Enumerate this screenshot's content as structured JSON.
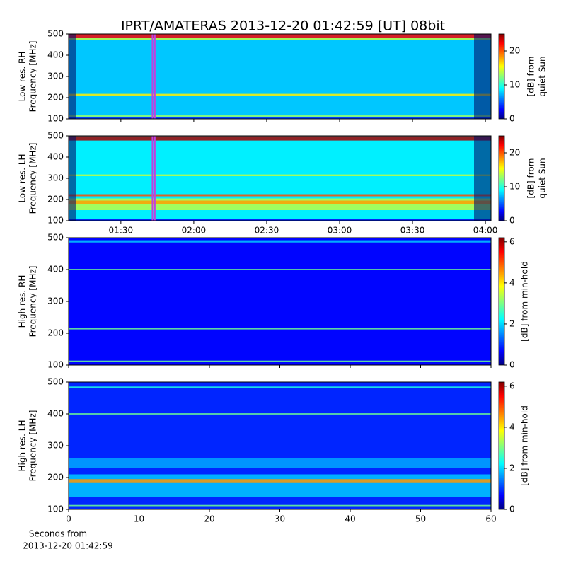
{
  "title": "IPRT/AMATERAS 2013-12-20 01:42:59 [UT]   08bit",
  "xlabel": [
    "Seconds from",
    "2013-12-20 01:42:59"
  ],
  "chart_data": [
    {
      "type": "spectrogram",
      "ylabel": [
        "Low res. RH",
        "Frequency [MHz]"
      ],
      "ylim": [
        100,
        500
      ],
      "yticks": [
        100,
        200,
        300,
        400,
        500
      ],
      "colorbar_label": [
        "[dB] from",
        "quiet Sun"
      ],
      "clim": [
        0,
        25
      ],
      "cticks": [
        0,
        10,
        20
      ],
      "colormap": "jet",
      "background_level": 8,
      "highlight": [
        102.98,
        103.98
      ],
      "highlight_color": "#c040e0",
      "features": [
        {
          "freq": [
            480,
            500
          ],
          "level": 22
        },
        {
          "freq": [
            470,
            480
          ],
          "level": 14
        },
        {
          "freq": [
            210,
            218
          ],
          "level": 16
        },
        {
          "freq": [
            110,
            120
          ],
          "level": 13
        },
        {
          "freq": [
            100,
            108
          ],
          "level": 4
        }
      ]
    },
    {
      "type": "spectrogram",
      "ylabel": [
        "Low res. LH",
        "Frequency [MHz]"
      ],
      "ylim": [
        100,
        500
      ],
      "yticks": [
        100,
        200,
        300,
        400,
        500
      ],
      "colorbar_label": [
        "[dB] from",
        "quiet Sun"
      ],
      "clim": [
        0,
        25
      ],
      "cticks": [
        0,
        10,
        20
      ],
      "colormap": "jet",
      "background_level": 9,
      "highlight": [
        102.98,
        103.98
      ],
      "highlight_color": "#c040e0",
      "xlim": [
        68.5,
        242.3
      ],
      "xticks": [
        {
          "value": 90,
          "label": "01:30"
        },
        {
          "value": 120,
          "label": "02:00"
        },
        {
          "value": 150,
          "label": "02:30"
        },
        {
          "value": 180,
          "label": "03:00"
        },
        {
          "value": 210,
          "label": "03:30"
        },
        {
          "value": 240,
          "label": "04:00"
        }
      ],
      "features": [
        {
          "freq": [
            478,
            498
          ],
          "level": 24
        },
        {
          "freq": [
            150,
            205
          ],
          "level": 14
        },
        {
          "freq": [
            180,
            195
          ],
          "level": 18
        },
        {
          "freq": [
            215,
            225
          ],
          "level": 20
        },
        {
          "freq": [
            310,
            318
          ],
          "level": 14
        },
        {
          "freq": [
            100,
            110
          ],
          "level": 3
        }
      ]
    },
    {
      "type": "spectrogram",
      "ylabel": [
        "High res. RH",
        "Frequency [MHz]"
      ],
      "ylim": [
        100,
        500
      ],
      "yticks": [
        100,
        200,
        300,
        400,
        500
      ],
      "colorbar_label": [
        "[dB] from min-hold"
      ],
      "clim": [
        0,
        6.2
      ],
      "cticks": [
        0,
        2,
        4,
        6
      ],
      "colormap": "jet",
      "background_level": 0.8,
      "features": [
        {
          "freq": [
            485,
            492
          ],
          "level": 2
        },
        {
          "freq": [
            398,
            402
          ],
          "level": 3
        },
        {
          "freq": [
            212,
            216
          ],
          "level": 3
        },
        {
          "freq": [
            110,
            114
          ],
          "level": 3
        }
      ]
    },
    {
      "type": "spectrogram",
      "ylabel": [
        "High res. LH",
        "Frequency [MHz]"
      ],
      "ylim": [
        100,
        500
      ],
      "yticks": [
        100,
        200,
        300,
        400,
        500
      ],
      "colorbar_label": [
        "[dB] from min-hold"
      ],
      "clim": [
        0,
        6.2
      ],
      "cticks": [
        0,
        2,
        4,
        6
      ],
      "colormap": "jet",
      "background_level": 1,
      "xlim": [
        0,
        60
      ],
      "xticks": [
        0,
        10,
        20,
        30,
        40,
        50,
        60
      ],
      "features": [
        {
          "freq": [
            480,
            486
          ],
          "level": 2.5
        },
        {
          "freq": [
            398,
            402
          ],
          "level": 3
        },
        {
          "freq": [
            230,
            260
          ],
          "level": 1.8
        },
        {
          "freq": [
            140,
            210
          ],
          "level": 2
        },
        {
          "freq": [
            185,
            195
          ],
          "level": 4.5
        },
        {
          "freq": [
            110,
            114
          ],
          "level": 3
        }
      ]
    }
  ]
}
